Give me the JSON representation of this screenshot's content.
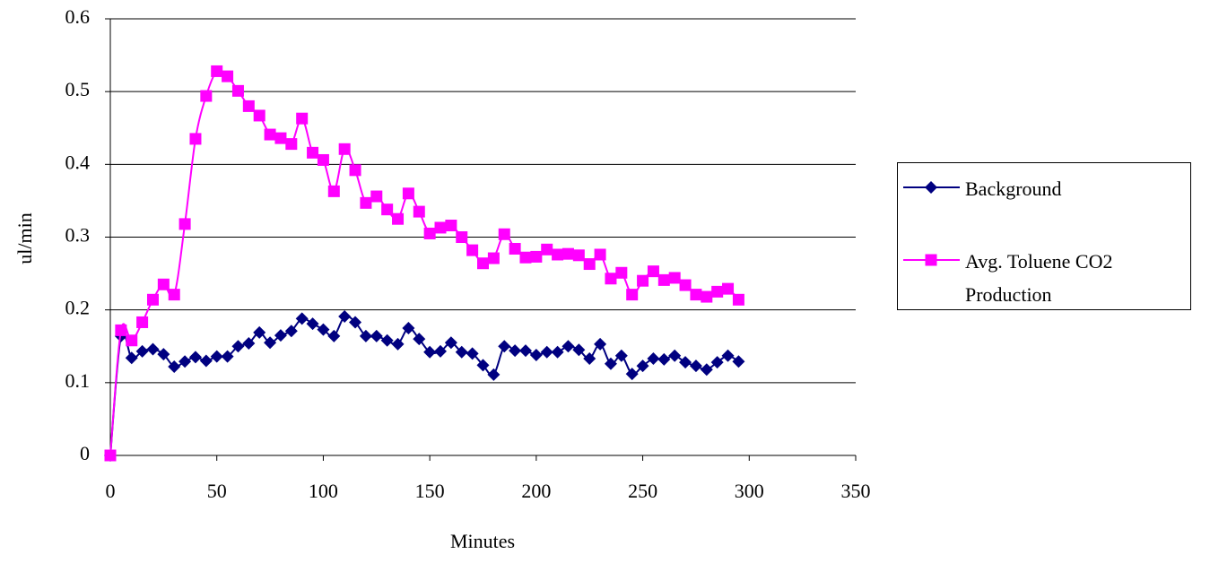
{
  "chart_data": {
    "type": "line",
    "smooth": true,
    "x_label": "Minutes",
    "y_label": "ul/min",
    "x": [
      0,
      5,
      10,
      15,
      20,
      25,
      30,
      35,
      40,
      45,
      50,
      55,
      60,
      65,
      70,
      75,
      80,
      85,
      90,
      95,
      100,
      105,
      110,
      115,
      120,
      125,
      130,
      135,
      140,
      145,
      150,
      155,
      160,
      165,
      170,
      175,
      180,
      185,
      190,
      195,
      200,
      205,
      210,
      215,
      220,
      225,
      230,
      235,
      240,
      245,
      250,
      255,
      260,
      265,
      270,
      275,
      280,
      285,
      290,
      295
    ],
    "series": [
      {
        "name": "Background",
        "color": "#000080",
        "marker": "diamond",
        "values": [
          0,
          0.164,
          0.134,
          0.143,
          0.146,
          0.139,
          0.122,
          0.129,
          0.135,
          0.13,
          0.136,
          0.136,
          0.15,
          0.154,
          0.169,
          0.155,
          0.165,
          0.171,
          0.188,
          0.181,
          0.173,
          0.164,
          0.191,
          0.183,
          0.164,
          0.164,
          0.158,
          0.153,
          0.175,
          0.16,
          0.142,
          0.143,
          0.155,
          0.142,
          0.14,
          0.124,
          0.111,
          0.15,
          0.144,
          0.144,
          0.138,
          0.142,
          0.142,
          0.15,
          0.145,
          0.133,
          0.153,
          0.126,
          0.137,
          0.112,
          0.123,
          0.133,
          0.132,
          0.137,
          0.128,
          0.123,
          0.118,
          0.128,
          0.137,
          0.129
        ]
      },
      {
        "name": "Avg. Toluene CO2 Production",
        "color": "#ff00ff",
        "marker": "square",
        "values": [
          0,
          0.172,
          0.158,
          0.183,
          0.214,
          0.235,
          0.221,
          0.318,
          0.435,
          0.494,
          0.528,
          0.521,
          0.501,
          0.48,
          0.467,
          0.441,
          0.436,
          0.428,
          0.463,
          0.416,
          0.406,
          0.363,
          0.421,
          0.392,
          0.347,
          0.356,
          0.338,
          0.325,
          0.36,
          0.335,
          0.305,
          0.313,
          0.316,
          0.3,
          0.282,
          0.264,
          0.271,
          0.304,
          0.284,
          0.272,
          0.273,
          0.283,
          0.276,
          0.277,
          0.275,
          0.263,
          0.276,
          0.243,
          0.251,
          0.221,
          0.24,
          0.253,
          0.241,
          0.244,
          0.234,
          0.221,
          0.218,
          0.225,
          0.229,
          0.214
        ]
      }
    ],
    "xlim": [
      0,
      350
    ],
    "xticks": [
      0,
      50,
      100,
      150,
      200,
      250,
      300,
      350
    ],
    "ylim": [
      0,
      0.6
    ],
    "yticks": [
      0,
      0.1,
      0.2,
      0.3,
      0.4,
      0.5,
      0.6
    ],
    "grid": true,
    "legend": "right"
  }
}
